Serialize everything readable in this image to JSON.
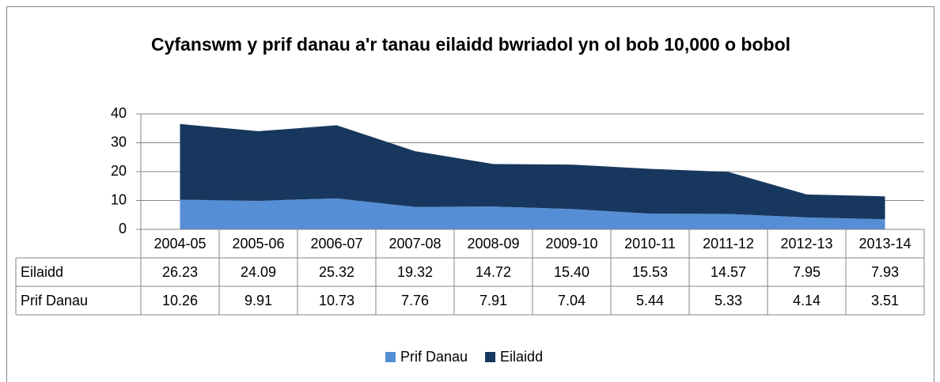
{
  "chart_data": {
    "type": "stacked_area",
    "title": "Cyfanswm y prif danau a'r tanau eilaidd bwriadol yn ol bob 10,000 o bobol",
    "categories": [
      "2004-05",
      "2005-06",
      "2006-07",
      "2007-08",
      "2008-09",
      "2009-10",
      "2010-11",
      "2011-12",
      "2012-13",
      "2013-14"
    ],
    "series": [
      {
        "name": "Prif Danau",
        "color": "#558ED5",
        "values": [
          10.26,
          9.91,
          10.73,
          7.76,
          7.91,
          7.04,
          5.44,
          5.33,
          4.14,
          3.51
        ],
        "value_labels": [
          "10.26",
          "9.91",
          "10.73",
          "7.76",
          "7.91",
          "7.04",
          "5.44",
          "5.33",
          "4.14",
          "3.51"
        ]
      },
      {
        "name": "Eilaidd",
        "color": "#17375E",
        "values": [
          26.23,
          24.09,
          25.32,
          19.32,
          14.72,
          15.4,
          15.53,
          14.57,
          7.95,
          7.93
        ],
        "value_labels": [
          "26.23",
          "24.09",
          "25.32",
          "19.32",
          "14.72",
          "15.40",
          "15.53",
          "14.57",
          "7.95",
          "7.93"
        ]
      }
    ],
    "ylim": [
      0,
      40
    ],
    "yticks": [
      0,
      10,
      20,
      30,
      40
    ],
    "grid": true,
    "legend": "bottom"
  }
}
